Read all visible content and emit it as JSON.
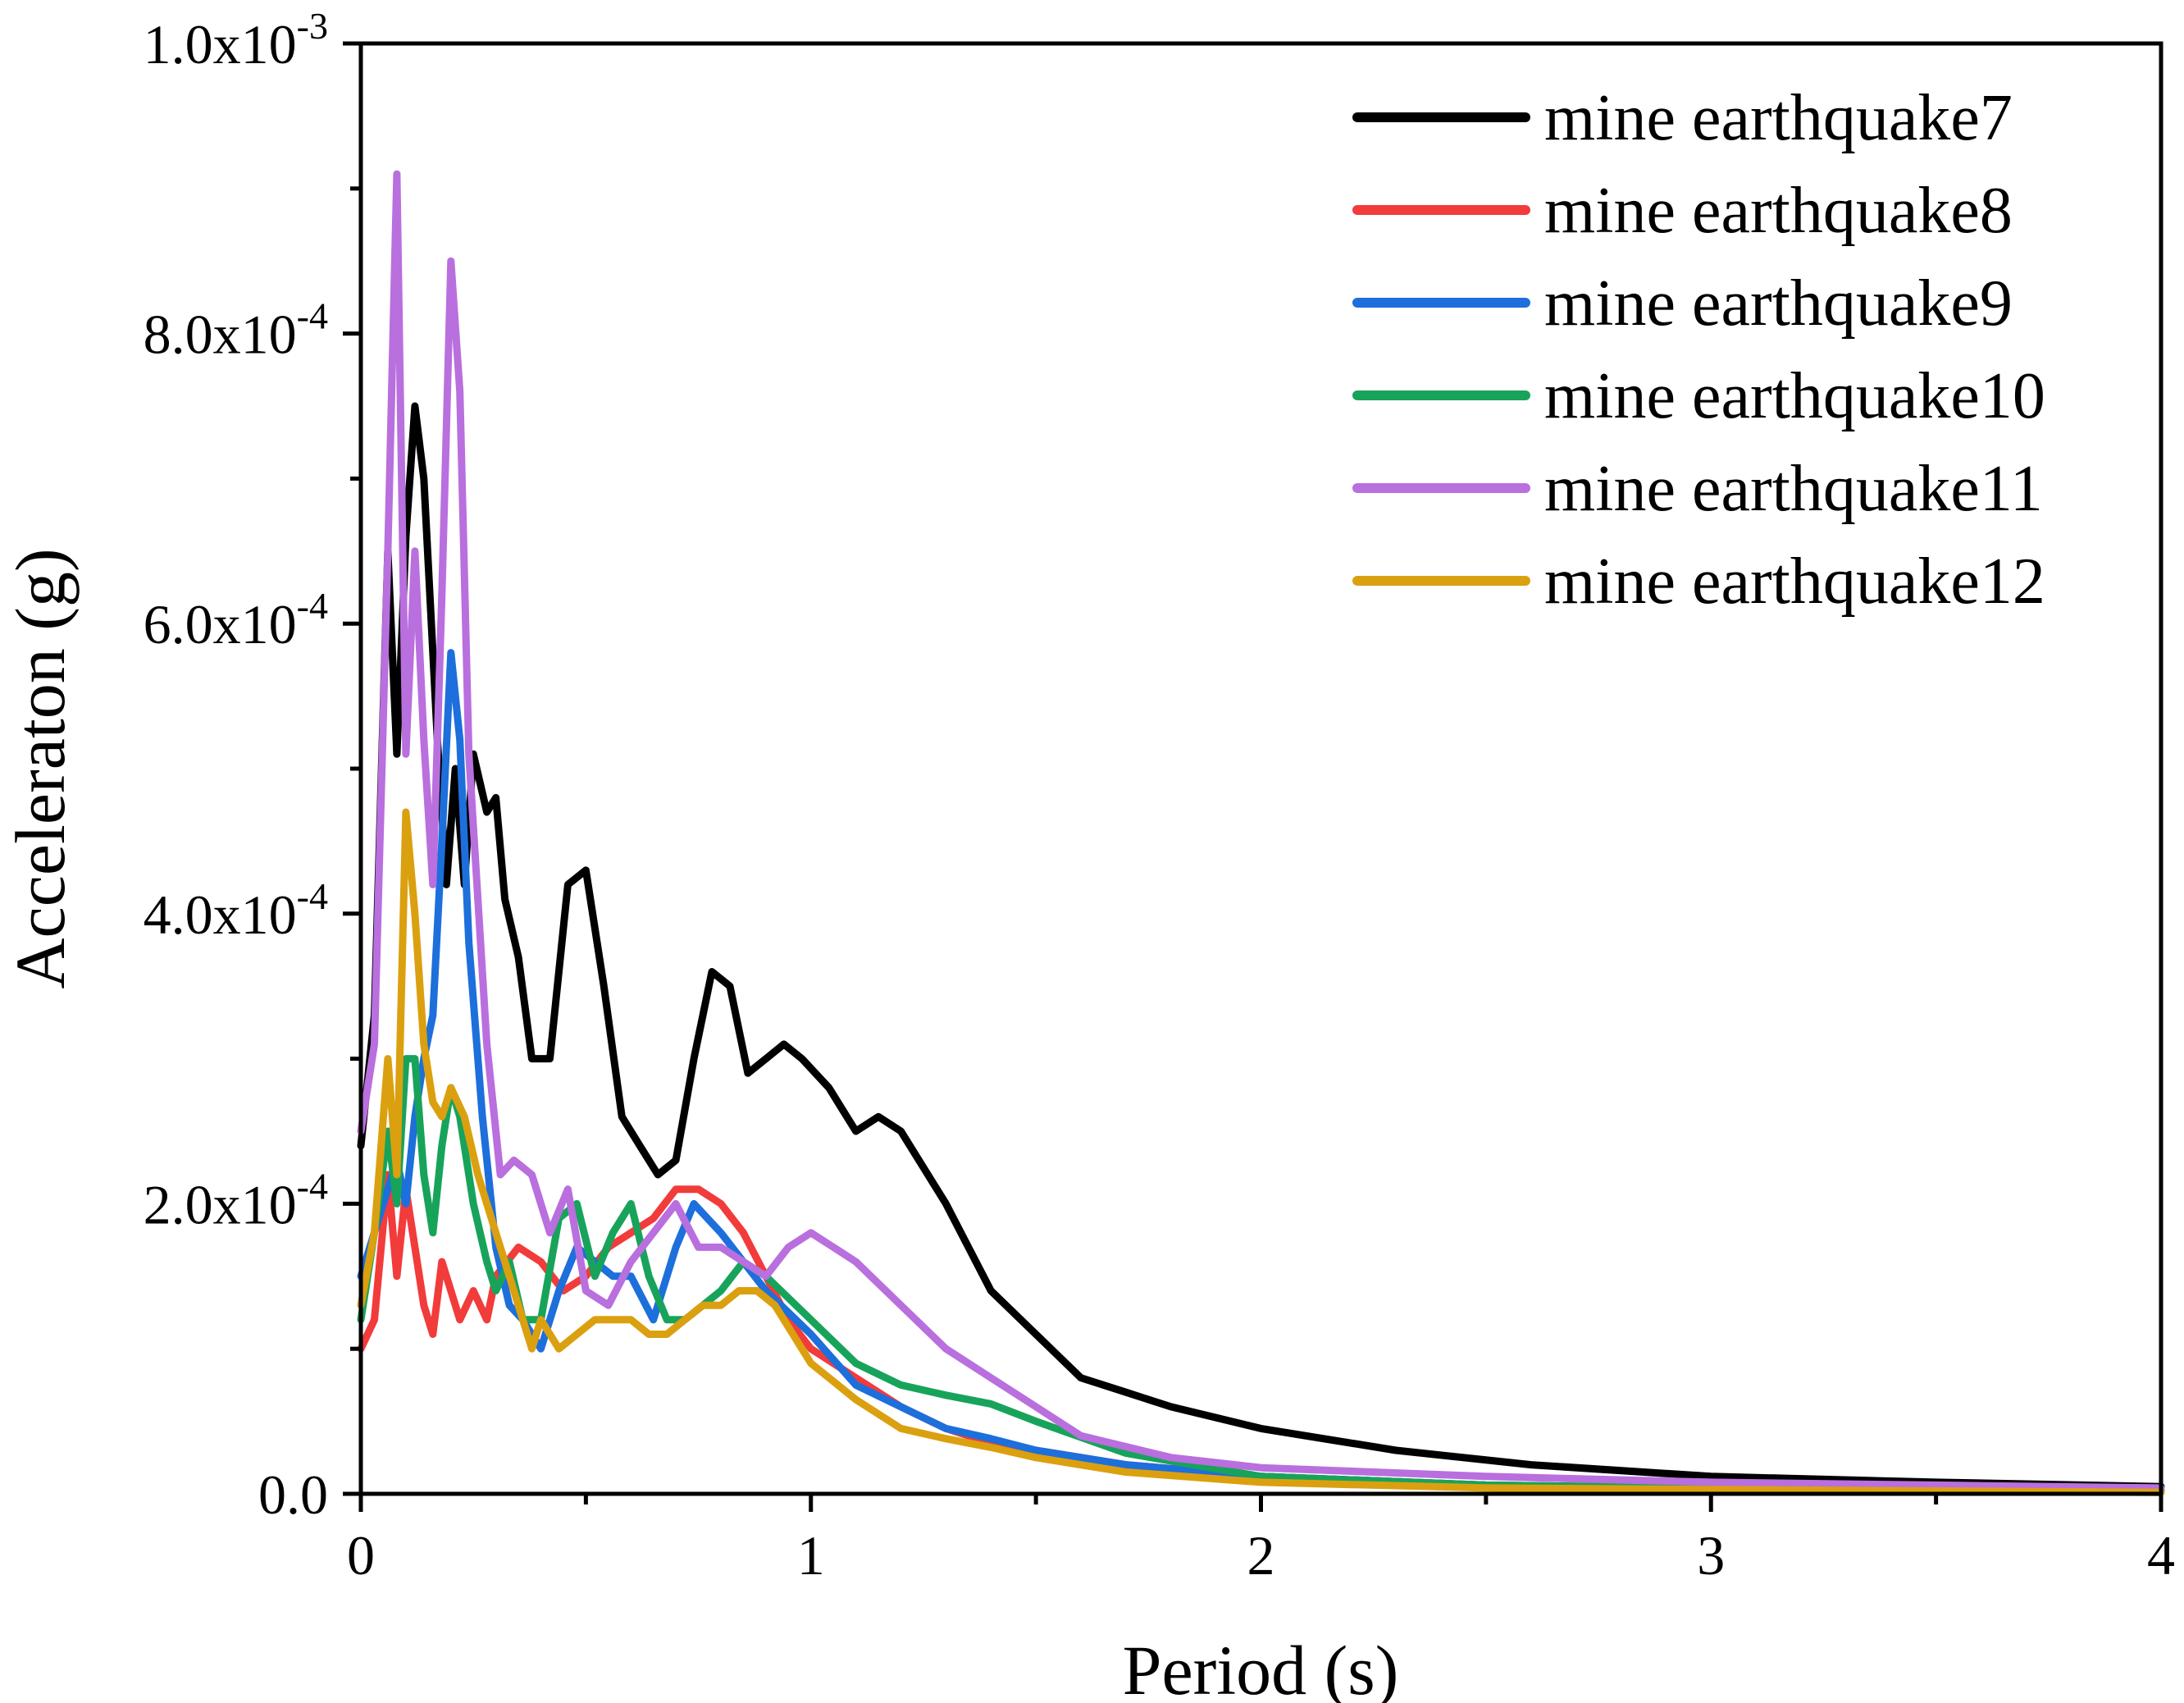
{
  "chart_data": {
    "type": "line",
    "title": "",
    "xlabel": "Period (s)",
    "ylabel": "Acceleraton (g)",
    "xlim": [
      0,
      4
    ],
    "ylim": [
      0,
      0.001
    ],
    "grid": false,
    "legend_position": "top-right",
    "x_ticks": [
      {
        "value": 0,
        "label": "0"
      },
      {
        "value": 1,
        "label": "1"
      },
      {
        "value": 2,
        "label": "2"
      },
      {
        "value": 3,
        "label": "3"
      },
      {
        "value": 4,
        "label": "4"
      }
    ],
    "y_ticks": [
      {
        "value": 0,
        "mantissa": "0.0",
        "exp": ""
      },
      {
        "value": 0.0002,
        "mantissa": "2.0x10",
        "exp": "-4"
      },
      {
        "value": 0.0004,
        "mantissa": "4.0x10",
        "exp": "-4"
      },
      {
        "value": 0.0006,
        "mantissa": "6.0x10",
        "exp": "-4"
      },
      {
        "value": 0.0008,
        "mantissa": "8.0x10",
        "exp": "-4"
      },
      {
        "value": 0.001,
        "mantissa": "1.0x10",
        "exp": "-3"
      }
    ],
    "series": [
      {
        "name": "mine earthquake7",
        "color": "#000000",
        "x": [
          0,
          0.03,
          0.06,
          0.08,
          0.1,
          0.12,
          0.14,
          0.15,
          0.17,
          0.19,
          0.21,
          0.23,
          0.25,
          0.28,
          0.3,
          0.32,
          0.35,
          0.38,
          0.42,
          0.46,
          0.5,
          0.54,
          0.58,
          0.62,
          0.66,
          0.7,
          0.74,
          0.78,
          0.82,
          0.86,
          0.9,
          0.94,
          0.98,
          1.04,
          1.1,
          1.15,
          1.2,
          1.3,
          1.4,
          1.5,
          1.6,
          1.7,
          1.8,
          2.0,
          2.3,
          2.6,
          3.0,
          3.5,
          4.0
        ],
        "y": [
          0.00024,
          0.00033,
          0.00065,
          0.00051,
          0.00066,
          0.00075,
          0.0007,
          0.00064,
          0.00052,
          0.00042,
          0.0005,
          0.00042,
          0.00051,
          0.00047,
          0.00048,
          0.00041,
          0.00037,
          0.0003,
          0.0003,
          0.00042,
          0.00043,
          0.00035,
          0.00026,
          0.00024,
          0.00022,
          0.00023,
          0.0003,
          0.00036,
          0.00035,
          0.00029,
          0.0003,
          0.00031,
          0.0003,
          0.00028,
          0.00025,
          0.00026,
          0.00025,
          0.0002,
          0.00014,
          0.00011,
          8e-05,
          7e-05,
          6e-05,
          4.5e-05,
          3e-05,
          2e-05,
          1.2e-05,
          8e-06,
          5e-06
        ]
      },
      {
        "name": "mine earthquake8",
        "color": "#f23b3b",
        "x": [
          0,
          0.03,
          0.06,
          0.08,
          0.1,
          0.12,
          0.14,
          0.16,
          0.18,
          0.2,
          0.22,
          0.25,
          0.28,
          0.3,
          0.35,
          0.4,
          0.45,
          0.5,
          0.55,
          0.6,
          0.65,
          0.7,
          0.75,
          0.8,
          0.85,
          0.9,
          0.95,
          1.0,
          1.1,
          1.2,
          1.3,
          1.4,
          1.5,
          1.7,
          2.0,
          2.5,
          3.0,
          3.5,
          4.0
        ],
        "y": [
          0.0001,
          0.00012,
          0.00022,
          0.00015,
          0.00021,
          0.00017,
          0.00013,
          0.00011,
          0.00016,
          0.00014,
          0.00012,
          0.00014,
          0.00012,
          0.00015,
          0.00017,
          0.00016,
          0.00014,
          0.00015,
          0.00017,
          0.00018,
          0.00019,
          0.00021,
          0.00021,
          0.0002,
          0.00018,
          0.00015,
          0.00012,
          0.0001,
          8e-05,
          6e-05,
          4.5e-05,
          3.5e-05,
          3e-05,
          2e-05,
          1.2e-05,
          6e-06,
          4e-06,
          3e-06,
          2e-06
        ]
      },
      {
        "name": "mine earthquake9",
        "color": "#1d6fdb",
        "x": [
          0,
          0.04,
          0.08,
          0.1,
          0.12,
          0.14,
          0.16,
          0.18,
          0.2,
          0.22,
          0.24,
          0.27,
          0.3,
          0.33,
          0.36,
          0.4,
          0.44,
          0.48,
          0.52,
          0.56,
          0.6,
          0.65,
          0.7,
          0.74,
          0.8,
          0.85,
          0.9,
          1.0,
          1.1,
          1.2,
          1.3,
          1.4,
          1.5,
          1.7,
          2.0,
          2.5,
          3.0,
          3.5,
          4.0
        ],
        "y": [
          0.00015,
          0.00019,
          0.00023,
          0.0002,
          0.00026,
          0.0003,
          0.00033,
          0.00045,
          0.00058,
          0.00052,
          0.00038,
          0.00026,
          0.00017,
          0.00013,
          0.00012,
          0.0001,
          0.00014,
          0.00017,
          0.00016,
          0.00015,
          0.00015,
          0.00012,
          0.00017,
          0.0002,
          0.00018,
          0.00016,
          0.00014,
          0.00011,
          7.5e-05,
          6e-05,
          4.5e-05,
          3.8e-05,
          3e-05,
          2e-05,
          1.2e-05,
          6e-06,
          4e-06,
          3e-06,
          2e-06
        ]
      },
      {
        "name": "mine earthquake10",
        "color": "#18a35b",
        "x": [
          0,
          0.03,
          0.06,
          0.08,
          0.1,
          0.12,
          0.14,
          0.16,
          0.18,
          0.2,
          0.22,
          0.25,
          0.28,
          0.3,
          0.33,
          0.36,
          0.4,
          0.44,
          0.48,
          0.52,
          0.56,
          0.6,
          0.64,
          0.68,
          0.72,
          0.76,
          0.8,
          0.85,
          0.9,
          1.0,
          1.1,
          1.2,
          1.3,
          1.4,
          1.5,
          1.7,
          2.0,
          2.5,
          3.0,
          3.5,
          4.0
        ],
        "y": [
          0.00012,
          0.00018,
          0.00025,
          0.0002,
          0.0003,
          0.0003,
          0.00022,
          0.00018,
          0.00024,
          0.00028,
          0.00026,
          0.0002,
          0.00016,
          0.00014,
          0.00016,
          0.00012,
          0.00012,
          0.00019,
          0.0002,
          0.00015,
          0.00018,
          0.0002,
          0.00015,
          0.00012,
          0.00012,
          0.00013,
          0.00014,
          0.00016,
          0.00015,
          0.00012,
          9e-05,
          7.5e-05,
          6.8e-05,
          6.2e-05,
          5e-05,
          2.8e-05,
          1.2e-05,
          6e-06,
          4e-06,
          3e-06,
          2e-06
        ]
      },
      {
        "name": "mine earthquake11",
        "color": "#b96fde",
        "x": [
          0,
          0.03,
          0.06,
          0.08,
          0.1,
          0.12,
          0.14,
          0.16,
          0.18,
          0.2,
          0.22,
          0.24,
          0.26,
          0.28,
          0.31,
          0.34,
          0.38,
          0.42,
          0.46,
          0.5,
          0.55,
          0.6,
          0.65,
          0.7,
          0.75,
          0.8,
          0.85,
          0.9,
          0.95,
          1.0,
          1.05,
          1.1,
          1.2,
          1.3,
          1.4,
          1.5,
          1.6,
          1.8,
          2.0,
          2.5,
          3.0,
          3.5,
          4.0
        ],
        "y": [
          0.00025,
          0.00031,
          0.00065,
          0.00091,
          0.00051,
          0.00065,
          0.00052,
          0.00042,
          0.00062,
          0.00085,
          0.00076,
          0.00051,
          0.00041,
          0.00031,
          0.00022,
          0.00023,
          0.00022,
          0.00018,
          0.00021,
          0.00014,
          0.00013,
          0.00016,
          0.00018,
          0.0002,
          0.00017,
          0.00017,
          0.00016,
          0.00015,
          0.00017,
          0.00018,
          0.00017,
          0.00016,
          0.00013,
          0.0001,
          8e-05,
          6e-05,
          4e-05,
          2.5e-05,
          1.8e-05,
          1.2e-05,
          8e-06,
          6e-06,
          4e-06
        ]
      },
      {
        "name": "mine earthquake12",
        "color": "#dba00f",
        "x": [
          0,
          0.03,
          0.06,
          0.08,
          0.1,
          0.12,
          0.14,
          0.16,
          0.18,
          0.2,
          0.23,
          0.26,
          0.3,
          0.33,
          0.36,
          0.38,
          0.4,
          0.44,
          0.48,
          0.52,
          0.56,
          0.6,
          0.64,
          0.68,
          0.72,
          0.76,
          0.8,
          0.84,
          0.88,
          0.92,
          0.96,
          1.0,
          1.1,
          1.2,
          1.3,
          1.4,
          1.5,
          1.7,
          2.0,
          2.5,
          3.0,
          3.5,
          4.0
        ],
        "y": [
          0.00013,
          0.00018,
          0.0003,
          0.00022,
          0.00047,
          0.0004,
          0.00031,
          0.00027,
          0.00026,
          0.00028,
          0.00026,
          0.00022,
          0.00018,
          0.00015,
          0.00012,
          0.0001,
          0.00012,
          0.0001,
          0.00011,
          0.00012,
          0.00012,
          0.00012,
          0.00011,
          0.00011,
          0.00012,
          0.00013,
          0.00013,
          0.00014,
          0.00014,
          0.00013,
          0.00011,
          9e-05,
          6.5e-05,
          4.5e-05,
          3.8e-05,
          3.2e-05,
          2.5e-05,
          1.5e-05,
          8e-06,
          4e-06,
          3e-06,
          2e-06,
          1e-06
        ]
      }
    ]
  }
}
